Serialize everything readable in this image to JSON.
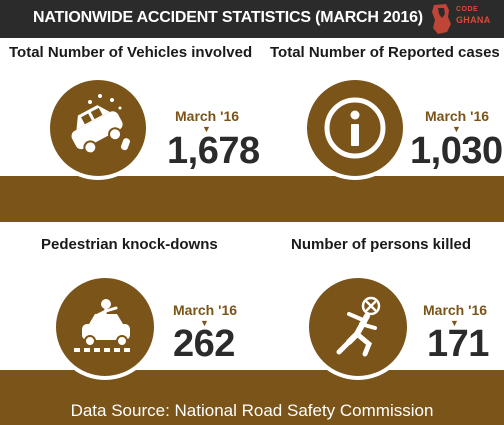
{
  "header": {
    "title": "NATIONWIDE ACCIDENT STATISTICS (MARCH 2016)",
    "logo": {
      "top_text": "CODE",
      "bottom_text": "GHANA"
    }
  },
  "stats": [
    {
      "title": "Total Number of Vehicles involved",
      "month": "March '16",
      "value": "1,678",
      "icon": "car-crash-icon"
    },
    {
      "title": "Total Number of Reported cases",
      "month": "March '16",
      "value": "1,030",
      "icon": "info-icon"
    },
    {
      "title": "Pedestrian knock-downs",
      "month": "March '16",
      "value": "262",
      "icon": "pedestrian-knockdown-icon"
    },
    {
      "title": "Number of persons killed",
      "month": "March '16",
      "value": "171",
      "icon": "falling-person-icon"
    }
  ],
  "footer": {
    "source": "Data Source: National Road Safety Commission"
  },
  "colors": {
    "brown": "#7a5418",
    "dark": "#2b2b2b",
    "accent": "#d94a3a"
  }
}
